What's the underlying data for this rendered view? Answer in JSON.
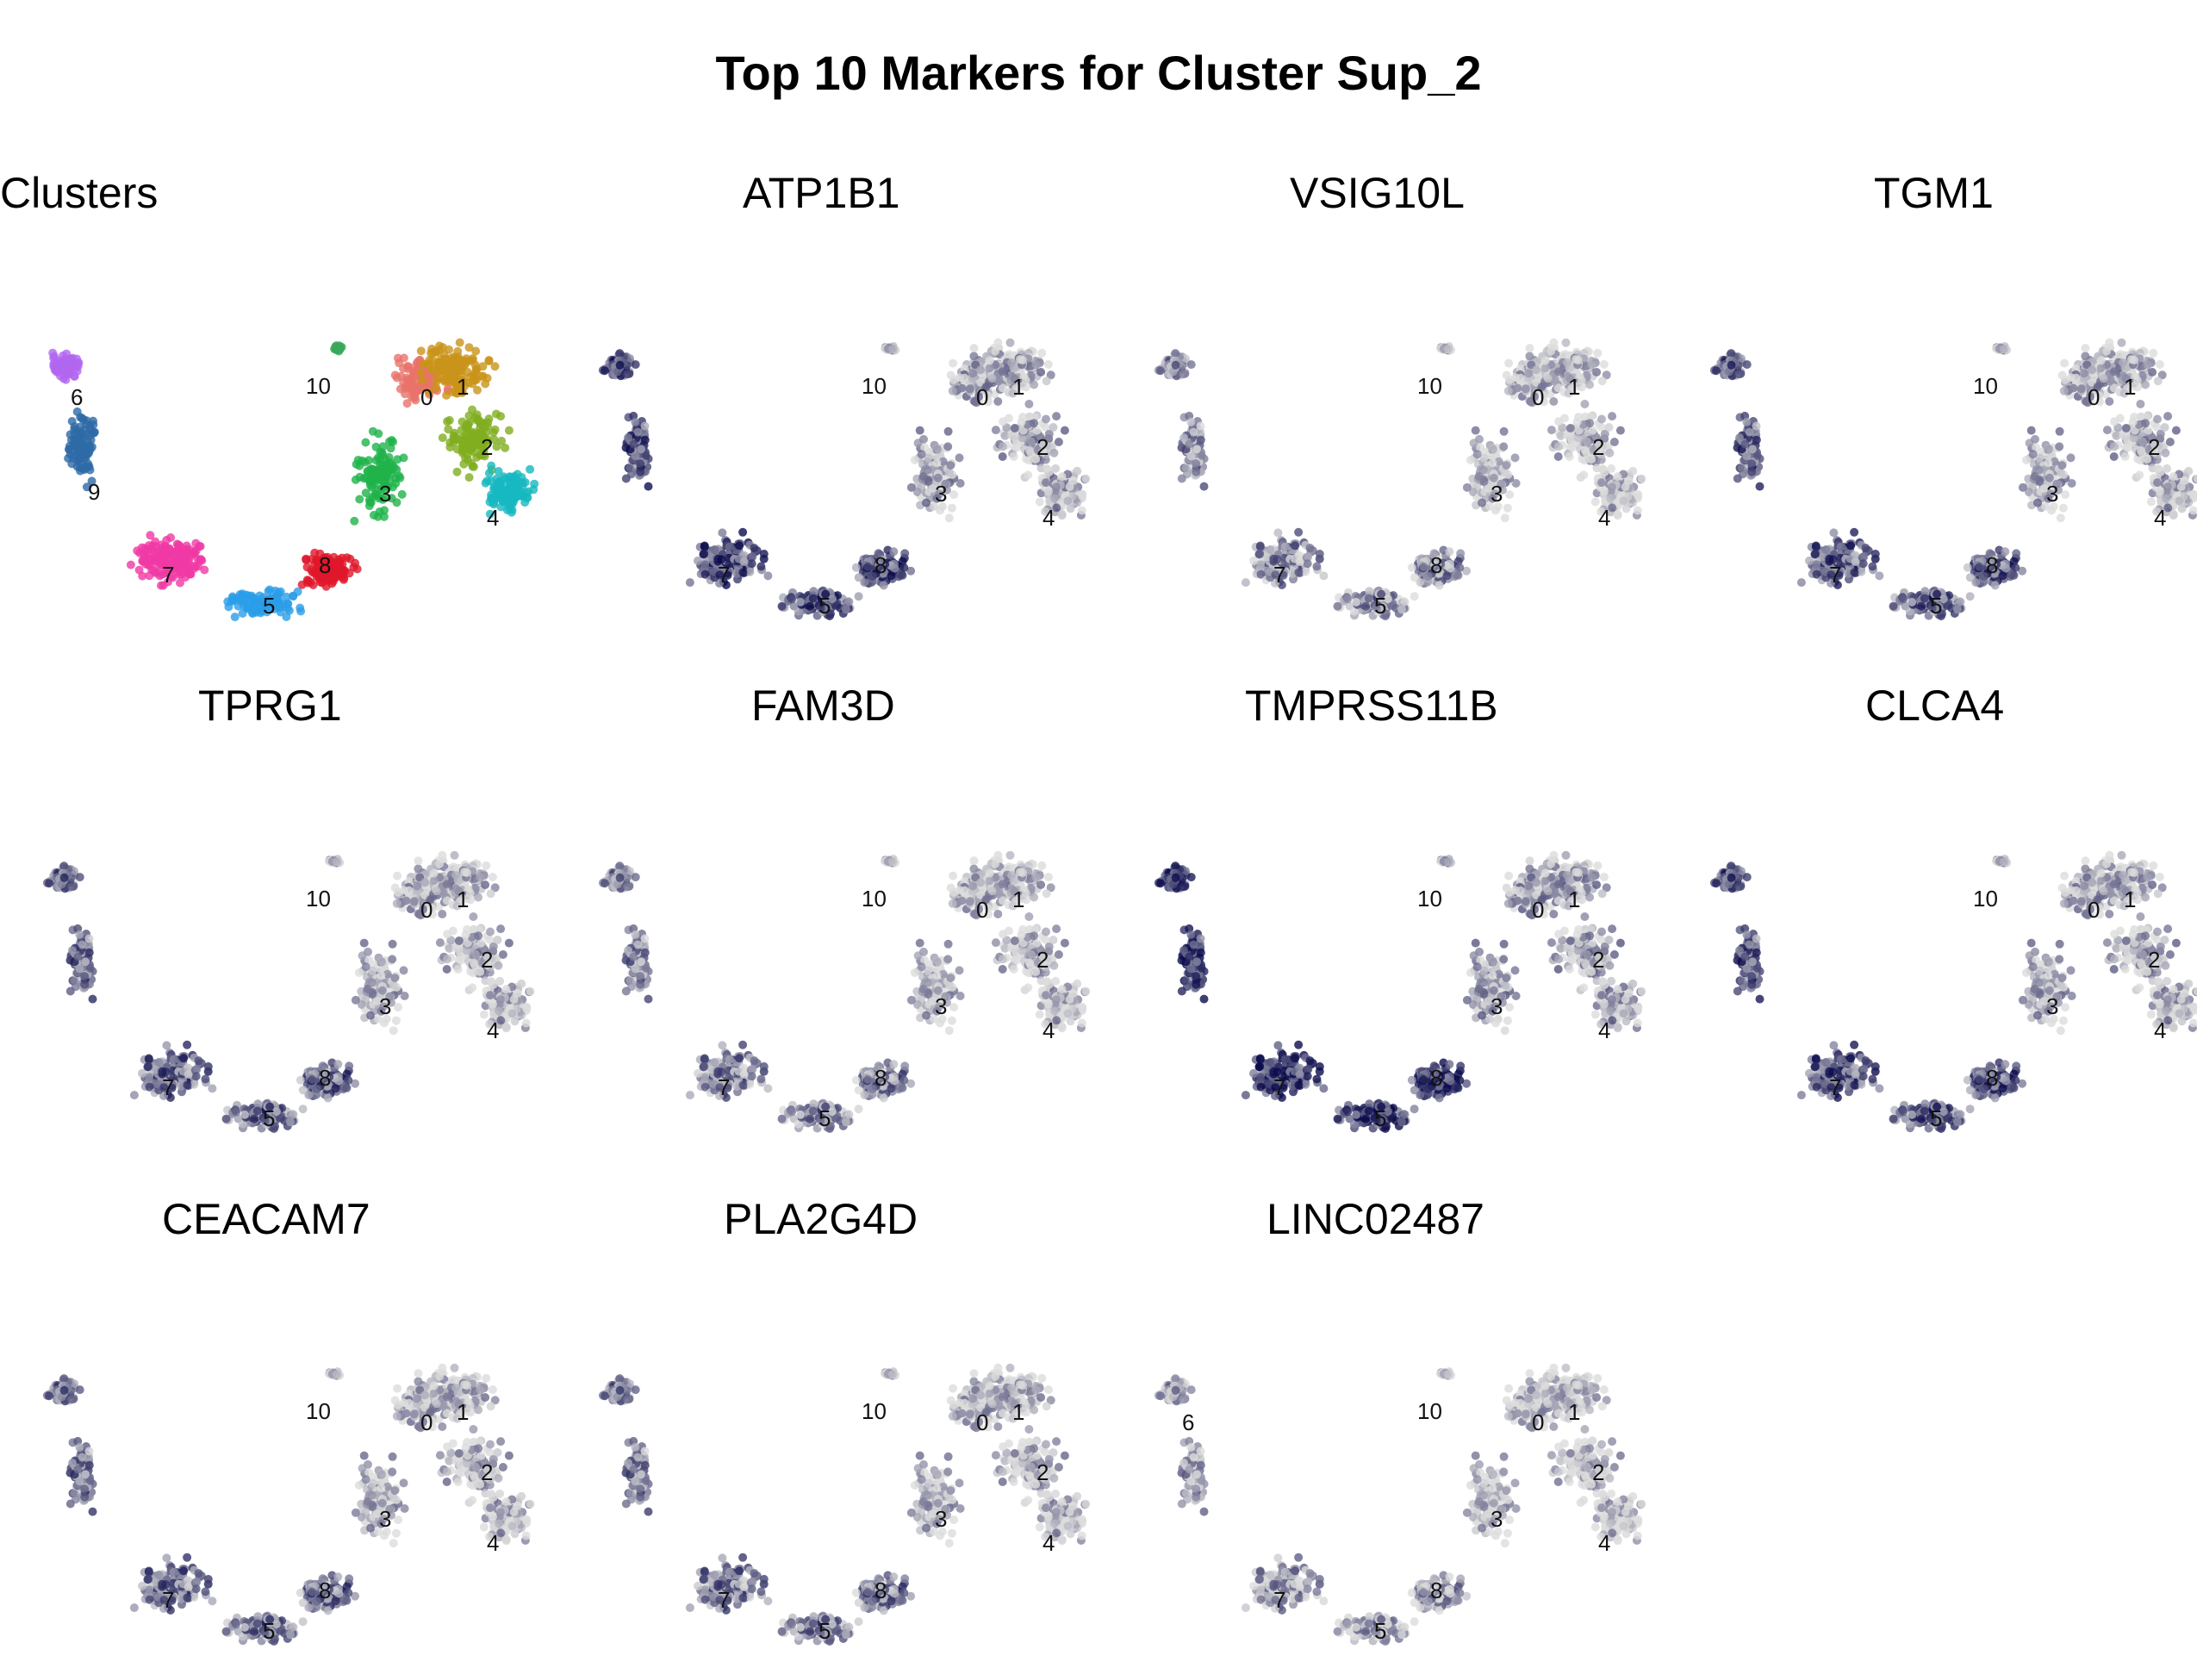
{
  "title": "Top 10 Markers for Cluster Sup_2",
  "colors": {
    "expr_low": "#dcdcdc",
    "expr_high": "#0d0d4d",
    "clusters": {
      "0": "#e8736b",
      "1": "#c9941a",
      "2": "#7fae1f",
      "3": "#1fb34a",
      "4": "#17b8c0",
      "5": "#2b9ee8",
      "6": "#b167f0",
      "7": "#f03aa5",
      "8": "#e0162a",
      "9": "#2e6aa6",
      "10": "#3aa85a"
    }
  },
  "chart_data": [
    {
      "type": "scatter",
      "kind": "clusters",
      "title": "Clusters",
      "cluster_labels": [
        "0",
        "1",
        "2",
        "3",
        "4",
        "5",
        "6",
        "7",
        "8",
        "9",
        "10"
      ]
    },
    {
      "type": "scatter",
      "kind": "expression",
      "title": "ATP1B1",
      "expression_level": 0.75,
      "cluster_labels": [
        "0",
        "1",
        "2",
        "3",
        "4",
        "5",
        "7",
        "8",
        "10"
      ]
    },
    {
      "type": "scatter",
      "kind": "expression",
      "title": "VSIG10L",
      "expression_level": 0.4,
      "cluster_labels": [
        "0",
        "1",
        "2",
        "3",
        "4",
        "5",
        "7",
        "8",
        "10"
      ]
    },
    {
      "type": "scatter",
      "kind": "expression",
      "title": "TGM1",
      "expression_level": 0.65,
      "cluster_labels": [
        "0",
        "1",
        "2",
        "3",
        "4",
        "5",
        "7",
        "8",
        "10"
      ]
    },
    {
      "type": "scatter",
      "kind": "expression",
      "title": "TPRG1",
      "expression_level": 0.6,
      "cluster_labels": [
        "0",
        "1",
        "2",
        "3",
        "4",
        "5",
        "7",
        "8",
        "10"
      ]
    },
    {
      "type": "scatter",
      "kind": "expression",
      "title": "FAM3D",
      "expression_level": 0.45,
      "cluster_labels": [
        "0",
        "1",
        "2",
        "3",
        "4",
        "5",
        "7",
        "8",
        "10"
      ]
    },
    {
      "type": "scatter",
      "kind": "expression",
      "title": "TMPRSS11B",
      "expression_level": 0.9,
      "cluster_labels": [
        "0",
        "1",
        "2",
        "3",
        "4",
        "5",
        "7",
        "8",
        "10"
      ]
    },
    {
      "type": "scatter",
      "kind": "expression",
      "title": "CLCA4",
      "expression_level": 0.7,
      "cluster_labels": [
        "0",
        "1",
        "2",
        "3",
        "4",
        "5",
        "7",
        "8",
        "10"
      ]
    },
    {
      "type": "scatter",
      "kind": "expression",
      "title": "CEACAM7",
      "expression_level": 0.55,
      "cluster_labels": [
        "0",
        "1",
        "2",
        "3",
        "4",
        "5",
        "7",
        "8",
        "10"
      ]
    },
    {
      "type": "scatter",
      "kind": "expression",
      "title": "PLA2G4D",
      "expression_level": 0.5,
      "cluster_labels": [
        "0",
        "1",
        "2",
        "3",
        "4",
        "5",
        "7",
        "8",
        "10"
      ]
    },
    {
      "type": "scatter",
      "kind": "expression",
      "title": "LINC02487",
      "expression_level": 0.3,
      "cluster_labels": [
        "0",
        "1",
        "2",
        "3",
        "4",
        "5",
        "6",
        "7",
        "8",
        "10"
      ]
    }
  ]
}
